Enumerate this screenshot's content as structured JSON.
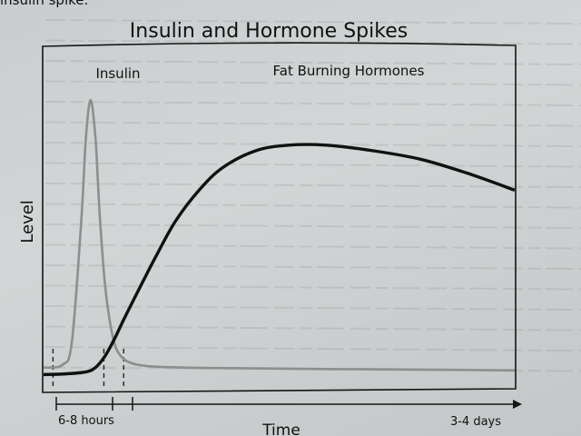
{
  "chart_data": {
    "type": "line",
    "title": "Insulin and Hormone Spikes",
    "xlabel": "Time",
    "ylabel": "Level",
    "grid": false,
    "x_range": [
      0,
      100
    ],
    "y_range": [
      0,
      100
    ],
    "series": [
      {
        "name": "Insulin",
        "color": "#8e8e8e",
        "x": [
          0,
          4,
          6,
          8,
          9,
          10,
          11,
          11.5,
          12,
          13,
          14,
          15,
          16,
          18,
          22,
          30,
          40,
          60,
          80,
          100
        ],
        "y": [
          3,
          4,
          12,
          55,
          85,
          98,
          85,
          70,
          55,
          33,
          20,
          12,
          8,
          5,
          3.5,
          3,
          2.8,
          2.5,
          2.3,
          2
        ]
      },
      {
        "name": "Fat Burning Hormones",
        "color": "#111111",
        "x": [
          0,
          5,
          9,
          11,
          13,
          15,
          17,
          20,
          24,
          28,
          33,
          38,
          45,
          52,
          60,
          70,
          80,
          90,
          100
        ],
        "y": [
          0.5,
          0.8,
          1.5,
          3,
          7,
          13,
          20,
          30,
          43,
          55,
          66,
          74,
          80,
          82,
          82,
          80,
          77,
          72,
          66
        ]
      }
    ],
    "reference_lines": [
      2,
      12.8,
      17
    ],
    "annotations": {
      "interval_1": "6-8 hours",
      "interval_2": "3-4 days"
    }
  },
  "page": {
    "header_fragment": "insulin spike."
  }
}
